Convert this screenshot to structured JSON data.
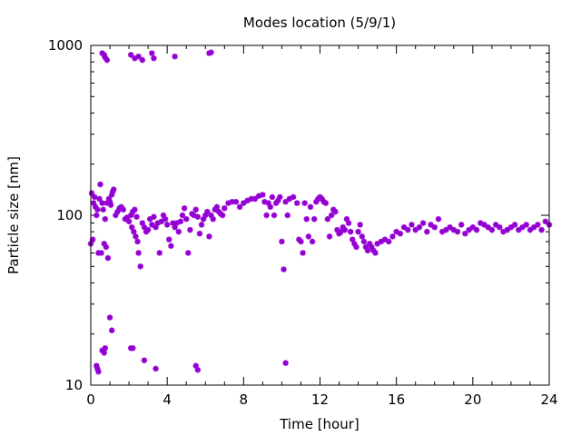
{
  "chart_data": {
    "type": "scatter",
    "title": "Modes location (5/9/1)",
    "xlabel": "Time [hour]",
    "ylabel": "Particle size [nm]",
    "xlim": [
      0,
      24
    ],
    "ylim": [
      10,
      1000
    ],
    "y_scale": "log",
    "grid": false,
    "legend": "none",
    "x_ticks": [
      0,
      4,
      8,
      12,
      16,
      20,
      24
    ],
    "x_tick_labels": [
      "0",
      "4",
      "8",
      "12",
      "16",
      "20",
      "24"
    ],
    "y_ticks": [
      10,
      100,
      1000
    ],
    "y_tick_labels": [
      "10",
      "100",
      "1000"
    ],
    "marker_color": "#9400d3",
    "series": [
      {
        "points": [
          [
            0.0,
            68
          ],
          [
            0.05,
            135
          ],
          [
            0.1,
            72
          ],
          [
            0.15,
            118
          ],
          [
            0.2,
            128
          ],
          [
            0.25,
            112
          ],
          [
            0.3,
            100
          ],
          [
            0.35,
            108
          ],
          [
            0.4,
            60
          ],
          [
            0.45,
            125
          ],
          [
            0.5,
            152
          ],
          [
            0.55,
            60
          ],
          [
            0.6,
            118
          ],
          [
            0.65,
            108
          ],
          [
            0.7,
            68
          ],
          [
            0.75,
            95
          ],
          [
            0.8,
            65
          ],
          [
            0.85,
            118
          ],
          [
            0.9,
            56
          ],
          [
            0.95,
            125
          ],
          [
            1.0,
            120
          ],
          [
            1.05,
            115
          ],
          [
            1.1,
            132
          ],
          [
            1.15,
            138
          ],
          [
            1.2,
            142
          ],
          [
            1.3,
            100
          ],
          [
            1.4,
            105
          ],
          [
            1.5,
            110
          ],
          [
            1.6,
            112
          ],
          [
            1.7,
            108
          ],
          [
            1.8,
            95
          ],
          [
            1.9,
            97
          ],
          [
            2.0,
            92
          ],
          [
            2.1,
            100
          ],
          [
            2.15,
            85
          ],
          [
            2.2,
            105
          ],
          [
            2.25,
            80
          ],
          [
            2.3,
            108
          ],
          [
            2.35,
            75
          ],
          [
            2.4,
            98
          ],
          [
            2.45,
            70
          ],
          [
            2.5,
            60
          ],
          [
            2.6,
            50
          ],
          [
            2.7,
            90
          ],
          [
            2.8,
            85
          ],
          [
            2.9,
            80
          ],
          [
            3.0,
            82
          ],
          [
            3.1,
            95
          ],
          [
            3.2,
            88
          ],
          [
            3.3,
            98
          ],
          [
            3.4,
            85
          ],
          [
            3.5,
            90
          ],
          [
            3.6,
            60
          ],
          [
            3.7,
            92
          ],
          [
            3.8,
            100
          ],
          [
            3.9,
            95
          ],
          [
            4.0,
            88
          ],
          [
            4.1,
            72
          ],
          [
            4.2,
            66
          ],
          [
            4.3,
            90
          ],
          [
            4.4,
            85
          ],
          [
            4.5,
            90
          ],
          [
            4.6,
            80
          ],
          [
            4.7,
            92
          ],
          [
            4.8,
            100
          ],
          [
            4.9,
            110
          ],
          [
            5.0,
            95
          ],
          [
            5.1,
            60
          ],
          [
            5.2,
            82
          ],
          [
            5.3,
            102
          ],
          [
            5.4,
            100
          ],
          [
            5.5,
            108
          ],
          [
            5.6,
            98
          ],
          [
            5.7,
            78
          ],
          [
            5.8,
            88
          ],
          [
            5.9,
            95
          ],
          [
            6.0,
            100
          ],
          [
            6.1,
            105
          ],
          [
            6.2,
            75
          ],
          [
            6.3,
            100
          ],
          [
            6.4,
            95
          ],
          [
            6.5,
            108
          ],
          [
            6.6,
            112
          ],
          [
            6.7,
            105
          ],
          [
            6.8,
            102
          ],
          [
            6.9,
            100
          ],
          [
            7.0,
            110
          ],
          [
            7.2,
            118
          ],
          [
            7.4,
            120
          ],
          [
            7.6,
            120
          ],
          [
            7.8,
            112
          ],
          [
            8.0,
            118
          ],
          [
            8.2,
            122
          ],
          [
            8.4,
            125
          ],
          [
            8.6,
            125
          ],
          [
            8.8,
            130
          ],
          [
            9.0,
            132
          ],
          [
            9.1,
            120
          ],
          [
            9.2,
            100
          ],
          [
            9.3,
            118
          ],
          [
            9.4,
            112
          ],
          [
            9.5,
            128
          ],
          [
            9.6,
            100
          ],
          [
            9.7,
            118
          ],
          [
            9.8,
            122
          ],
          [
            9.9,
            128
          ],
          [
            10.0,
            70
          ],
          [
            10.1,
            48
          ],
          [
            10.2,
            120
          ],
          [
            10.3,
            100
          ],
          [
            10.4,
            125
          ],
          [
            10.6,
            128
          ],
          [
            10.8,
            118
          ],
          [
            10.9,
            72
          ],
          [
            11.0,
            70
          ],
          [
            11.1,
            60
          ],
          [
            11.2,
            118
          ],
          [
            11.3,
            95
          ],
          [
            11.4,
            75
          ],
          [
            11.5,
            112
          ],
          [
            11.6,
            70
          ],
          [
            11.7,
            95
          ],
          [
            11.8,
            120
          ],
          [
            11.9,
            125
          ],
          [
            12.0,
            128
          ],
          [
            12.1,
            125
          ],
          [
            12.2,
            120
          ],
          [
            12.3,
            118
          ],
          [
            12.4,
            95
          ],
          [
            12.5,
            75
          ],
          [
            12.6,
            100
          ],
          [
            12.7,
            108
          ],
          [
            12.8,
            105
          ],
          [
            12.9,
            82
          ],
          [
            13.0,
            78
          ],
          [
            13.1,
            80
          ],
          [
            13.2,
            85
          ],
          [
            13.3,
            82
          ],
          [
            13.4,
            95
          ],
          [
            13.5,
            90
          ],
          [
            13.6,
            80
          ],
          [
            13.7,
            72
          ],
          [
            13.8,
            68
          ],
          [
            13.9,
            65
          ],
          [
            14.0,
            80
          ],
          [
            14.1,
            88
          ],
          [
            14.2,
            75
          ],
          [
            14.3,
            70
          ],
          [
            14.4,
            65
          ],
          [
            14.5,
            62
          ],
          [
            14.6,
            68
          ],
          [
            14.7,
            65
          ],
          [
            14.8,
            62
          ],
          [
            14.9,
            60
          ],
          [
            15.0,
            68
          ],
          [
            15.2,
            70
          ],
          [
            15.4,
            72
          ],
          [
            15.6,
            70
          ],
          [
            15.8,
            75
          ],
          [
            16.0,
            80
          ],
          [
            16.2,
            78
          ],
          [
            16.4,
            85
          ],
          [
            16.6,
            82
          ],
          [
            16.8,
            88
          ],
          [
            17.0,
            82
          ],
          [
            17.2,
            85
          ],
          [
            17.4,
            90
          ],
          [
            17.6,
            80
          ],
          [
            17.8,
            88
          ],
          [
            18.0,
            85
          ],
          [
            18.2,
            95
          ],
          [
            18.4,
            80
          ],
          [
            18.6,
            82
          ],
          [
            18.8,
            85
          ],
          [
            19.0,
            82
          ],
          [
            19.2,
            80
          ],
          [
            19.4,
            88
          ],
          [
            19.6,
            78
          ],
          [
            19.8,
            82
          ],
          [
            20.0,
            85
          ],
          [
            20.2,
            82
          ],
          [
            20.4,
            90
          ],
          [
            20.6,
            88
          ],
          [
            20.8,
            85
          ],
          [
            21.0,
            82
          ],
          [
            21.2,
            88
          ],
          [
            21.4,
            85
          ],
          [
            21.6,
            80
          ],
          [
            21.8,
            82
          ],
          [
            22.0,
            85
          ],
          [
            22.2,
            88
          ],
          [
            22.4,
            82
          ],
          [
            22.6,
            85
          ],
          [
            22.8,
            88
          ],
          [
            23.0,
            82
          ],
          [
            23.2,
            85
          ],
          [
            23.4,
            88
          ],
          [
            23.6,
            82
          ],
          [
            23.8,
            92
          ],
          [
            24.0,
            88
          ],
          [
            0.3,
            13
          ],
          [
            0.35,
            12.5
          ],
          [
            0.4,
            12
          ],
          [
            0.6,
            16
          ],
          [
            0.7,
            15.5
          ],
          [
            0.75,
            16.5
          ],
          [
            1.0,
            25
          ],
          [
            1.1,
            21
          ],
          [
            2.1,
            16.5
          ],
          [
            2.2,
            16.5
          ],
          [
            2.8,
            14
          ],
          [
            3.4,
            12.5
          ],
          [
            5.5,
            13
          ],
          [
            5.6,
            12.3
          ],
          [
            10.2,
            13.5
          ],
          [
            0.6,
            900
          ],
          [
            0.7,
            880
          ],
          [
            0.75,
            850
          ],
          [
            0.85,
            820
          ],
          [
            2.1,
            880
          ],
          [
            2.3,
            840
          ],
          [
            2.5,
            860
          ],
          [
            2.7,
            820
          ],
          [
            3.2,
            900
          ],
          [
            3.3,
            840
          ],
          [
            4.4,
            860
          ],
          [
            6.2,
            900
          ],
          [
            6.3,
            910
          ]
        ]
      }
    ]
  }
}
